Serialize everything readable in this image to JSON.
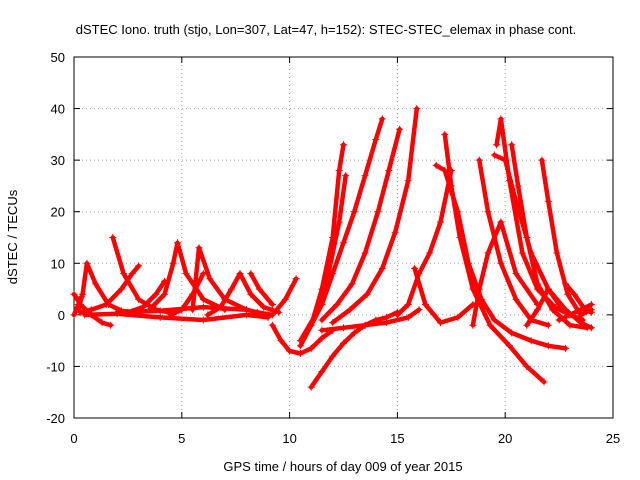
{
  "chart_data": {
    "type": "scatter",
    "title": "dSTEC Iono. truth (stjo, Lon=307, Lat=47, h=152): STEC-STEC_elemax in phase cont.",
    "xlabel": "GPS time / hours of day 009 of year 2015",
    "ylabel": "dSTEC  / TECUs",
    "xlim": [
      0,
      25
    ],
    "ylim": [
      -20,
      50
    ],
    "xticks": [
      "0",
      "5",
      "10",
      "15",
      "20",
      "25"
    ],
    "yticks": [
      "-20",
      "-10",
      "0",
      "10",
      "20",
      "30",
      "40",
      "50"
    ],
    "grid": true,
    "legend": "none",
    "marker": "plus",
    "color": "#ff0000",
    "series": [
      {
        "x": [
          0.0,
          0.3,
          0.8,
          1.3,
          1.7
        ],
        "y": [
          4.0,
          2.0,
          0.0,
          -1.5,
          -2.0
        ]
      },
      {
        "x": [
          0.0,
          0.2,
          0.35
        ],
        "y": [
          0.0,
          2.0,
          3.5
        ]
      },
      {
        "x": [
          0.2,
          0.4,
          0.6,
          1.0,
          1.6,
          2.2,
          2.8
        ],
        "y": [
          1.0,
          4.0,
          10.0,
          6.0,
          2.0,
          0.8,
          0.5
        ]
      },
      {
        "x": [
          0.3,
          0.8,
          1.5,
          2.2,
          2.7,
          3.0
        ],
        "y": [
          0.5,
          1.0,
          2.0,
          5.0,
          8.0,
          9.5
        ]
      },
      {
        "x": [
          1.8,
          2.3,
          3.0,
          3.8,
          4.6
        ],
        "y": [
          15.0,
          8.0,
          3.0,
          1.0,
          0.3
        ]
      },
      {
        "x": [
          2.5,
          3.2,
          3.8,
          4.2
        ],
        "y": [
          0.5,
          1.5,
          4.0,
          6.5
        ]
      },
      {
        "x": [
          3.5,
          4.2,
          4.6,
          4.8,
          5.2,
          6.0,
          7.0
        ],
        "y": [
          1.0,
          4.0,
          10.0,
          14.0,
          8.0,
          3.0,
          1.0
        ]
      },
      {
        "x": [
          4.5,
          5.0,
          5.5,
          6.0
        ],
        "y": [
          0.0,
          1.0,
          4.0,
          8.0
        ]
      },
      {
        "x": [
          5.5,
          5.8,
          6.3,
          7.0,
          8.0
        ],
        "y": [
          1.0,
          13.0,
          7.0,
          3.0,
          1.0
        ]
      },
      {
        "x": [
          6.2,
          6.8,
          7.3,
          7.7
        ],
        "y": [
          0.0,
          1.5,
          5.0,
          8.0
        ]
      },
      {
        "x": [
          7.7,
          8.2,
          8.8,
          9.5
        ],
        "y": [
          8.0,
          4.0,
          1.5,
          0.5
        ]
      },
      {
        "x": [
          8.2,
          8.6,
          9.2
        ],
        "y": [
          8.0,
          5.0,
          2.0
        ]
      },
      {
        "x": [
          0.5,
          2.0,
          4.0,
          6.0,
          8.0,
          9.0
        ],
        "y": [
          0.0,
          0.2,
          -0.5,
          -1.0,
          0.0,
          -0.5
        ]
      },
      {
        "x": [
          2.0,
          4.0,
          6.0,
          8.0,
          9.0
        ],
        "y": [
          0.5,
          0.8,
          1.5,
          1.0,
          0.0
        ]
      },
      {
        "x": [
          8.5,
          9.2,
          9.8,
          10.3
        ],
        "y": [
          0.5,
          0.0,
          3.0,
          7.0
        ]
      },
      {
        "x": [
          9.2,
          9.6,
          10.0,
          10.5,
          11.0,
          11.5,
          12.0
        ],
        "y": [
          -2.0,
          -5.0,
          -7.0,
          -7.5,
          -6.5,
          -4.5,
          -3.0
        ]
      },
      {
        "x": [
          11.0,
          11.5,
          12.0,
          12.5,
          13.0,
          13.5,
          14.0,
          14.5,
          15.0
        ],
        "y": [
          -14.0,
          -11.0,
          -8.0,
          -5.5,
          -3.5,
          -2.0,
          -1.0,
          -0.5,
          0.5
        ]
      },
      {
        "x": [
          10.5,
          11.0,
          11.5,
          12.0,
          12.3,
          12.5
        ],
        "y": [
          -6.0,
          -2.0,
          5.0,
          15.0,
          28.0,
          33.0
        ]
      },
      {
        "x": [
          10.5,
          11.2,
          11.8,
          12.3,
          12.6
        ],
        "y": [
          -5.0,
          0.0,
          8.0,
          18.0,
          27.0
        ]
      },
      {
        "x": [
          11.0,
          11.5,
          12.0,
          12.5,
          13.0,
          13.5,
          14.0,
          14.3
        ],
        "y": [
          -2.0,
          2.0,
          8.0,
          14.0,
          20.0,
          27.0,
          34.0,
          38.0
        ]
      },
      {
        "x": [
          11.5,
          12.2,
          12.9,
          13.5,
          14.1,
          14.6,
          15.1
        ],
        "y": [
          -1.0,
          2.0,
          6.0,
          12.0,
          20.0,
          28.0,
          36.0
        ]
      },
      {
        "x": [
          12.0,
          12.8,
          13.6,
          14.3,
          14.9,
          15.5,
          15.9
        ],
        "y": [
          -1.5,
          1.0,
          4.0,
          9.0,
          16.0,
          26.0,
          40.0
        ]
      },
      {
        "x": [
          11.5,
          12.5,
          13.5,
          14.5,
          15.5,
          16.0
        ],
        "y": [
          -3.0,
          -2.5,
          -2.0,
          -1.5,
          -0.5,
          1.0
        ]
      },
      {
        "x": [
          15.0,
          15.5,
          16.0,
          16.5,
          17.0,
          17.5
        ],
        "y": [
          0.0,
          2.0,
          8.0,
          12.0,
          18.0,
          28.0
        ]
      },
      {
        "x": [
          15.8,
          16.3,
          17.0,
          17.8,
          18.5
        ],
        "y": [
          9.0,
          2.0,
          -1.5,
          -0.5,
          2.0
        ]
      },
      {
        "x": [
          17.2,
          17.5,
          17.9,
          18.5,
          19.3,
          20.2,
          21.0,
          21.8
        ],
        "y": [
          35.0,
          25.0,
          15.0,
          5.0,
          -2.0,
          -6.0,
          -10.0,
          -13.0
        ]
      },
      {
        "x": [
          16.8,
          17.2,
          17.8,
          18.3,
          18.9,
          19.5,
          20.3,
          21.2,
          22.0,
          22.8
        ],
        "y": [
          29.0,
          28.0,
          20.0,
          10.0,
          3.0,
          -1.0,
          -3.5,
          -5.0,
          -6.0,
          -6.5
        ]
      },
      {
        "x": [
          18.5,
          18.8,
          19.2,
          19.8,
          20.5,
          21.5
        ],
        "y": [
          -2.0,
          5.0,
          12.0,
          18.0,
          8.0,
          2.0
        ]
      },
      {
        "x": [
          18.8,
          19.2,
          19.8,
          20.5,
          21.2,
          22.0
        ],
        "y": [
          30.0,
          20.0,
          10.0,
          3.0,
          -1.0,
          -2.0
        ]
      },
      {
        "x": [
          19.6,
          19.8,
          20.2,
          20.8,
          21.5,
          22.3,
          23.0
        ],
        "y": [
          33.0,
          38.0,
          26.0,
          12.0,
          5.0,
          1.5,
          0.0
        ]
      },
      {
        "x": [
          19.5,
          20.0,
          20.5,
          21.2,
          22.0,
          22.8,
          23.5,
          24.0
        ],
        "y": [
          31.0,
          30.0,
          22.0,
          12.0,
          5.0,
          1.0,
          -1.5,
          -2.5
        ]
      },
      {
        "x": [
          20.3,
          20.6,
          21.0,
          21.5,
          22.2,
          23.0,
          23.8
        ],
        "y": [
          33.0,
          25.0,
          15.0,
          6.0,
          1.0,
          -2.0,
          -2.5
        ]
      },
      {
        "x": [
          21.0,
          21.5,
          22.0,
          22.5,
          23.0,
          23.6
        ],
        "y": [
          -2.0,
          1.0,
          5.0,
          2.0,
          0.0,
          -1.0
        ]
      },
      {
        "x": [
          21.7,
          22.0,
          22.4,
          22.9,
          23.5,
          24.0
        ],
        "y": [
          30.0,
          22.0,
          12.0,
          4.0,
          0.0,
          1.0
        ]
      },
      {
        "x": [
          22.8,
          23.2,
          23.7,
          24.0
        ],
        "y": [
          6.0,
          4.0,
          1.0,
          0.5
        ]
      },
      {
        "x": [
          22.5,
          23.0,
          23.5,
          24.0
        ],
        "y": [
          -1.0,
          0.0,
          1.0,
          2.0
        ]
      }
    ]
  }
}
